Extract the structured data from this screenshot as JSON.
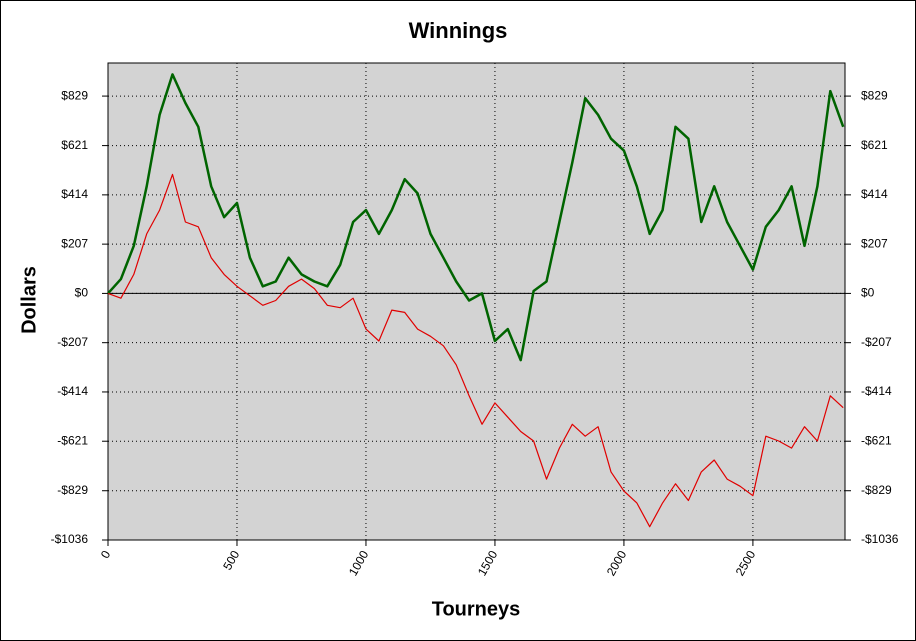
{
  "chart_data": {
    "type": "line",
    "title": "Winnings",
    "x_label": "Tourneys",
    "y_label": "Dollars",
    "x": [
      0,
      50,
      100,
      150,
      200,
      250,
      300,
      350,
      400,
      450,
      500,
      550,
      600,
      650,
      700,
      750,
      800,
      850,
      900,
      950,
      1000,
      1050,
      1100,
      1150,
      1200,
      1250,
      1300,
      1350,
      1400,
      1450,
      1500,
      1550,
      1600,
      1650,
      1700,
      1750,
      1800,
      1850,
      1900,
      1950,
      2000,
      2050,
      2100,
      2150,
      2200,
      2250,
      2300,
      2350,
      2400,
      2450,
      2500,
      2550,
      2600,
      2650,
      2700,
      2750,
      2800,
      2850
    ],
    "series": [
      {
        "color": "#006400",
        "values": [
          0,
          60,
          200,
          450,
          750,
          920,
          800,
          700,
          450,
          320,
          380,
          150,
          30,
          50,
          150,
          80,
          50,
          30,
          120,
          300,
          350,
          250,
          350,
          480,
          420,
          250,
          150,
          50,
          -30,
          0,
          -200,
          -150,
          -280,
          10,
          50,
          300,
          550,
          820,
          750,
          650,
          600,
          450,
          250,
          350,
          700,
          650,
          300,
          450,
          300,
          200,
          100,
          280,
          350,
          450,
          200,
          450,
          850,
          700
        ]
      },
      {
        "color": "#e00000",
        "values": [
          0,
          -20,
          80,
          250,
          350,
          500,
          300,
          280,
          150,
          80,
          30,
          -10,
          -50,
          -30,
          30,
          60,
          20,
          -50,
          -60,
          -20,
          -150,
          -200,
          -70,
          -80,
          -150,
          -180,
          -220,
          -300,
          -430,
          -550,
          -460,
          -520,
          -580,
          -620,
          -780,
          -650,
          -550,
          -600,
          -560,
          -750,
          -830,
          -880,
          -980,
          -880,
          -800,
          -870,
          -750,
          -700,
          -780,
          -810,
          -850,
          -600,
          -620,
          -650,
          -560,
          -620,
          -430,
          -480
        ]
      }
    ],
    "xlim": [
      0,
      2857
    ],
    "xticks": [
      0,
      500,
      1000,
      1500,
      2000,
      2500
    ],
    "ylim": [
      -1036,
      968
    ],
    "yticks": [
      {
        "value": -1036,
        "label": "-$1036"
      },
      {
        "value": -829,
        "label": "-$829"
      },
      {
        "value": -621,
        "label": "-$621"
      },
      {
        "value": -414,
        "label": "-$414"
      },
      {
        "value": -207,
        "label": "-$207"
      },
      {
        "value": 0,
        "label": "$0"
      },
      {
        "value": 207,
        "label": "$207"
      },
      {
        "value": 414,
        "label": "$414"
      },
      {
        "value": 621,
        "label": "$621"
      },
      {
        "value": 829,
        "label": "$829"
      }
    ],
    "grid": true
  }
}
